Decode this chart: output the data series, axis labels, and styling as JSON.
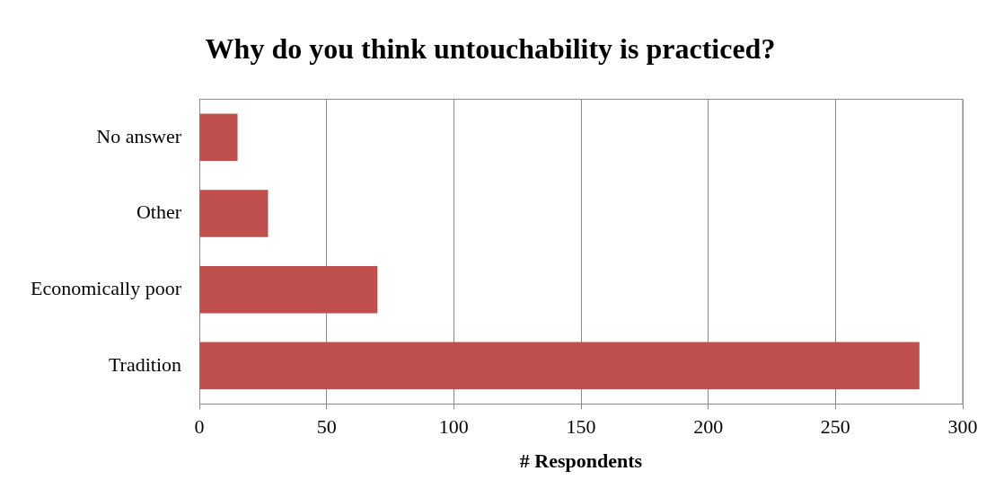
{
  "chart_data": {
    "type": "bar",
    "orientation": "horizontal",
    "title": "Why do you think untouchability is practiced?",
    "xlabel": "# Respondents",
    "categories": [
      "No answer",
      "Other",
      "Economically poor",
      "Tradition"
    ],
    "values": [
      15,
      27,
      70,
      283
    ],
    "color": "#c0504d",
    "xlim": [
      0,
      300
    ],
    "xticks": [
      0,
      50,
      100,
      150,
      200,
      250,
      300
    ],
    "grid": "x",
    "legend": false
  }
}
